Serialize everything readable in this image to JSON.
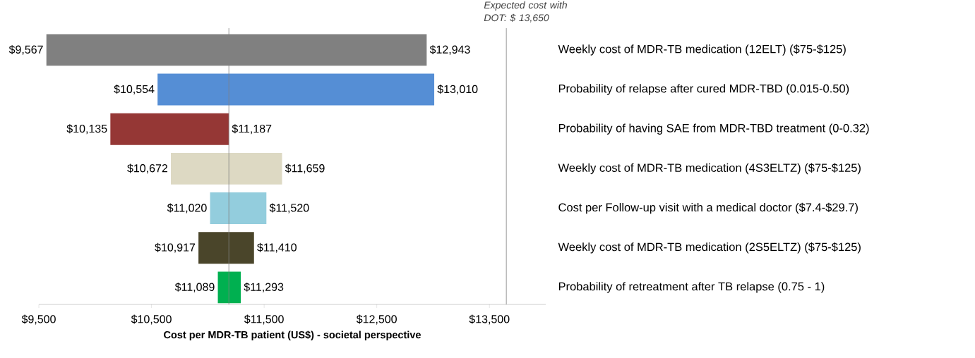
{
  "chart_data": {
    "type": "bar",
    "orientation": "horizontal",
    "xlabel": "Cost per MDR-TB patient (US$) - societal perspective",
    "categories": [
      "Weekly cost of MDR-TB medication (12ELT) ($75-$125)",
      "Probability of relapse after cured MDR-TBD (0.015-0.50)",
      "Probability of having SAE from MDR-TBD treatment (0-0.32)",
      "Weekly cost of MDR-TB medication (4S3ELTZ) ($75-$125)",
      "Cost per Follow-up visit with a medical doctor ($7.4-$29.7)",
      "Weekly cost of MDR-TB medication (2S5ELTZ) ($75-$125)",
      "Probability of retreatment after TB relapse (0.75 - 1)"
    ],
    "base": [
      9567,
      10554,
      10135,
      10672,
      11020,
      10917,
      11089
    ],
    "values": [
      3376,
      2456,
      1052,
      987,
      500,
      493,
      204
    ],
    "colors": [
      "#808080",
      "#558ed5",
      "#953735",
      "#ddd9c3",
      "#93cddd",
      "#4a452a",
      "#00b050"
    ],
    "xlim": [
      9500,
      14000
    ],
    "xticks": [
      {
        "value": 9500,
        "label": "$9,500"
      },
      {
        "value": 10500,
        "label": "$10,500"
      },
      {
        "value": 11500,
        "label": "$11,500"
      },
      {
        "value": 12500,
        "label": "$12,500"
      },
      {
        "value": 13500,
        "label": "$13,500"
      }
    ],
    "ref_lines": [
      {
        "axis": "x",
        "value": 11187,
        "color": "#808080"
      },
      {
        "axis": "x",
        "value": 13650,
        "label": "Expected cost with DOT: $ 13,650",
        "color": "#808080"
      }
    ],
    "annotations": [
      {
        "text": "$9,567",
        "x": 9567,
        "y": "Weekly cost of MDR-TB medication (12ELT) ($75-$125)"
      },
      {
        "text": "$12,943",
        "x": 12943,
        "y": "Weekly cost of MDR-TB medication (12ELT) ($75-$125)"
      },
      {
        "text": "$10,554",
        "x": 10554,
        "y": "Probability of relapse after cured MDR-TBD (0.015-0.50)"
      },
      {
        "text": "$13,010",
        "x": 13010,
        "y": "Probability of relapse after cured MDR-TBD (0.015-0.50)"
      },
      {
        "text": "$10,135",
        "x": 10135,
        "y": "Probability of having SAE from MDR-TBD treatment (0-0.32)"
      },
      {
        "text": "$11,187",
        "x": 11187,
        "y": "Probability of having SAE from MDR-TBD treatment (0-0.32)"
      },
      {
        "text": "$10,672",
        "x": 10672,
        "y": "Weekly cost of MDR-TB medication (4S3ELTZ) ($75-$125)"
      },
      {
        "text": "$11,659",
        "x": 11659,
        "y": "Weekly cost of MDR-TB medication (4S3ELTZ) ($75-$125)"
      },
      {
        "text": "$11,020",
        "x": 11020,
        "y": "Cost per Follow-up visit with a medical doctor ($7.4-$29.7)"
      },
      {
        "text": "$11,520",
        "x": 11520,
        "y": "Cost per Follow-up visit with a medical doctor ($7.4-$29.7)"
      },
      {
        "text": "$10,917",
        "x": 10917,
        "y": "Weekly cost of MDR-TB medication (2S5ELTZ) ($75-$125)"
      },
      {
        "text": "$11,410",
        "x": 11410,
        "y": "Weekly cost of MDR-TB medication (2S5ELTZ) ($75-$125)"
      },
      {
        "text": "$11,089",
        "x": 11089,
        "y": "Probability of retreatment after TB relapse (0.75 - 1)"
      },
      {
        "text": "$11,293",
        "x": 11293,
        "y": "Probability of retreatment after TB relapse (0.75 - 1)"
      }
    ],
    "grid": false
  }
}
